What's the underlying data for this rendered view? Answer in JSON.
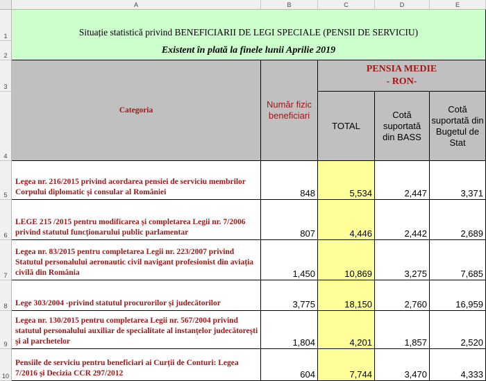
{
  "columns": [
    "A",
    "B",
    "C",
    "D",
    "E"
  ],
  "rows": [
    "1",
    "2",
    "3",
    "4",
    "5",
    "6",
    "7",
    "8",
    "9",
    "10"
  ],
  "title_line1": "Situație statistică privind BENEFICIARII DE LEGI SPECIALE (PENSII DE SERVICIU)",
  "title_line2": "Existent în plată la finele lunii Aprilie 2019",
  "header": {
    "categoria": "Categoria",
    "numar_fizic": "Număr fizic beneficiari",
    "pensia_medie": "PENSIA MEDIE",
    "ron": "- RON-",
    "total": "TOTAL",
    "cota_bass": "Cotă suportată din BASS",
    "cota_buget": "Cotă suportată din Bugetul de Stat"
  },
  "data_rows": [
    {
      "category": "Legea nr. 216/2015 privind acordarea pensiei de serviciu membrilor Corpului diplomatic şi consular al României",
      "beneficiari": "848",
      "total": "5,534",
      "bass": "2,447",
      "buget": "3,371"
    },
    {
      "category": "LEGE 215 /2015  pentru modificarea și completarea Legii nr. 7/2006 privind statutul funcționarului public parlamentar",
      "beneficiari": "807",
      "total": "4,446",
      "bass": "2,442",
      "buget": "2,689"
    },
    {
      "category": " Legea nr. 83/2015 pentru completarea Legii nr. 223/2007 privind Statutul personalului aeronautic civil navigant profesionist din aviația civilă din România",
      "beneficiari": "1,450",
      "total": "10,869",
      "bass": "3,275",
      "buget": "7,685"
    },
    {
      "category": "Lege 303/2004 -privind statutul procurorilor și judecătorilor",
      "beneficiari": "3,775",
      "total": "18,150",
      "bass": "2,760",
      "buget": "16,959"
    },
    {
      "category": "Legea nr. 130/2015 pentru completarea Legii nr. 567/2004 privind statutul personalului auxiliar de specialitate al instanţelor judecătoreşti şi al parchetelor",
      "beneficiari": "1,804",
      "total": "4,201",
      "bass": "1,857",
      "buget": "2,520"
    },
    {
      "category": "Pensiile de serviciu pentru beneficiari ai Curții de Conturi: Legea 7/2016 și  Decizia CCR 297/2012",
      "beneficiari": "604",
      "total": "7,744",
      "bass": "3,470",
      "buget": "4,333"
    }
  ],
  "colors": {
    "title_bg": "#ccffcc",
    "header_bg": "#c0c0c0",
    "total_bg": "#ffff99",
    "category_text": "#a01818"
  }
}
